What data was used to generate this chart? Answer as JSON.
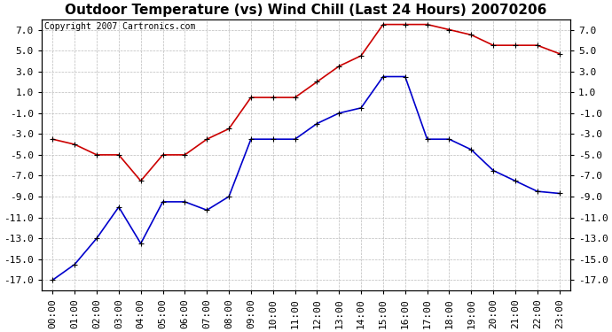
{
  "title": "Outdoor Temperature (vs) Wind Chill (Last 24 Hours) 20070206",
  "copyright": "Copyright 2007 Cartronics.com",
  "hours": [
    "00:00",
    "01:00",
    "02:00",
    "03:00",
    "04:00",
    "05:00",
    "06:00",
    "07:00",
    "08:00",
    "09:00",
    "10:00",
    "11:00",
    "12:00",
    "13:00",
    "14:00",
    "15:00",
    "16:00",
    "17:00",
    "18:00",
    "19:00",
    "20:00",
    "21:00",
    "22:00",
    "23:00"
  ],
  "temp": [
    -3.5,
    -4.0,
    -5.0,
    -5.0,
    -7.5,
    -5.0,
    -5.0,
    -3.5,
    -2.5,
    0.5,
    0.5,
    0.5,
    2.0,
    3.5,
    4.5,
    7.5,
    7.5,
    7.5,
    7.0,
    6.5,
    5.5,
    5.5,
    5.5,
    4.7
  ],
  "wind_chill": [
    -17.0,
    -15.5,
    -13.0,
    -10.0,
    -13.5,
    -9.5,
    -9.5,
    -10.3,
    -9.0,
    -3.5,
    -3.5,
    -3.5,
    -2.0,
    -1.0,
    -0.5,
    2.5,
    2.5,
    -3.5,
    -3.5,
    -4.5,
    -6.5,
    -7.5,
    -8.5,
    -8.7
  ],
  "ylim": [
    -18.0,
    8.0
  ],
  "yticks": [
    -17.0,
    -15.0,
    -13.0,
    -11.0,
    -9.0,
    -7.0,
    -5.0,
    -3.0,
    -1.0,
    1.0,
    3.0,
    5.0,
    7.0
  ],
  "ytick_labels": [
    "-17.0",
    "-15.0",
    "-13.0",
    "-11.0",
    "-9.0",
    "-7.0",
    "-5.0",
    "-3.0",
    "-1.0",
    "1.0",
    "3.0",
    "5.0",
    "7.0"
  ],
  "temp_color": "#cc0000",
  "wind_chill_color": "#0000cc",
  "background_color": "#ffffff",
  "grid_color": "#bbbbbb",
  "title_fontsize": 11,
  "tick_fontsize": 8,
  "copyright_fontsize": 7
}
